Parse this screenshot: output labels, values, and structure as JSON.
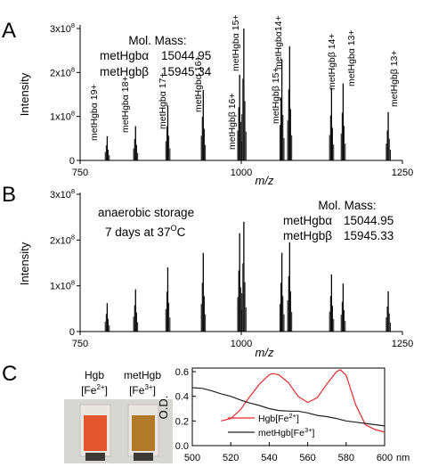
{
  "panels": {
    "A": {
      "letter": "A"
    },
    "B": {
      "letter": "B"
    },
    "C": {
      "letter": "C"
    }
  },
  "chart_data": [
    {
      "id": "A",
      "type": "line",
      "title": "",
      "xlabel": "m/z",
      "ylabel": "Intensity",
      "xlim": [
        750,
        1250
      ],
      "ylim": [
        0,
        3
      ],
      "y_unit_exponent": 8,
      "xticks": [
        "750",
        "1000",
        "1250"
      ],
      "yticks": [
        "0",
        "1x10",
        "2x10",
        "3x10"
      ],
      "ytick_exponent": "8",
      "mol_mass": {
        "heading": "Mol. Mass:",
        "rows": [
          {
            "name": "metHgbα",
            "value": "15044.95"
          },
          {
            "name": "metHgbβ",
            "value": "15945.34"
          }
        ]
      },
      "ion_labels": [
        "metHgbα 19+",
        "metHgbα 18+",
        "metHgbα 17+",
        "metHgbα 16+",
        "metHgbβ 16+",
        "metHgbα 15+",
        "metHgbβ 15+",
        "metHgbα14+",
        "metHgbβ 14+",
        "metHgbα 13+",
        "metHgbβ 13+"
      ],
      "peaks": [
        {
          "x": 792.0,
          "y": 0.55
        },
        {
          "x": 836.0,
          "y": 0.78
        },
        {
          "x": 886.0,
          "y": 1.25
        },
        {
          "x": 941.0,
          "y": 1.6
        },
        {
          "x": 997.5,
          "y": 1.95
        },
        {
          "x": 1004.0,
          "y": 3.0
        },
        {
          "x": 1063.0,
          "y": 2.3
        },
        {
          "x": 1075.0,
          "y": 2.6
        },
        {
          "x": 1140.0,
          "y": 1.65
        },
        {
          "x": 1158.0,
          "y": 1.75
        },
        {
          "x": 1228.0,
          "y": 1.1
        }
      ]
    },
    {
      "id": "B",
      "type": "line",
      "title": "",
      "xlabel": "m/z",
      "ylabel": "Intensity",
      "xlim": [
        750,
        1250
      ],
      "ylim": [
        0,
        3
      ],
      "y_unit_exponent": 8,
      "xticks": [
        "750",
        "1000",
        "1250"
      ],
      "yticks": [
        "0",
        "1x10",
        "2x10",
        "3x10"
      ],
      "ytick_exponent": "8",
      "annotation": [
        "anaerobic storage",
        "7 days at 37",
        "O",
        "C"
      ],
      "mol_mass": {
        "heading": "Mol. Mass:",
        "rows": [
          {
            "name": "metHgbα",
            "value": "15044.95"
          },
          {
            "name": "metHgbβ",
            "value": "15945.33"
          }
        ]
      },
      "peaks": [
        {
          "x": 792.0,
          "y": 0.62
        },
        {
          "x": 836.0,
          "y": 0.92
        },
        {
          "x": 886.0,
          "y": 1.4
        },
        {
          "x": 941.0,
          "y": 1.72
        },
        {
          "x": 997.5,
          "y": 2.15
        },
        {
          "x": 1004.0,
          "y": 2.4
        },
        {
          "x": 1063.0,
          "y": 1.72
        },
        {
          "x": 1075.0,
          "y": 1.95
        },
        {
          "x": 1140.0,
          "y": 1.25
        },
        {
          "x": 1158.0,
          "y": 1.05
        },
        {
          "x": 1228.0,
          "y": 0.88
        }
      ]
    },
    {
      "id": "C",
      "type": "line",
      "title": "",
      "xlabel": "nm",
      "ylabel": "O.D.",
      "xlim": [
        500,
        600
      ],
      "ylim": [
        0,
        0.6
      ],
      "xticks": [
        "500",
        "520",
        "540",
        "560",
        "580",
        "600"
      ],
      "yticks": [
        "0.0",
        "0.2",
        "0.4",
        "0.6"
      ],
      "legend_position": "bottom-right",
      "series": [
        {
          "name": "Hgb[Fe2+]",
          "legend_base": "Hgb[Fe",
          "legend_sup": "2+",
          "legend_end": "]",
          "color": "#e8282b",
          "x": [
            515,
            520,
            525,
            530,
            535,
            540,
            542,
            545,
            550,
            555,
            560,
            565,
            570,
            575,
            577,
            580,
            585,
            590,
            595,
            600
          ],
          "y": [
            0.2,
            0.22,
            0.29,
            0.4,
            0.5,
            0.575,
            0.585,
            0.575,
            0.51,
            0.4,
            0.35,
            0.39,
            0.5,
            0.6,
            0.615,
            0.57,
            0.33,
            0.17,
            0.13,
            0.11
          ]
        },
        {
          "name": "metHgb[Fe3+]",
          "legend_base": "metHgb[Fe",
          "legend_sup": "3+",
          "legend_end": "]",
          "color": "#222222",
          "x": [
            500,
            505,
            510,
            515,
            520,
            525,
            530,
            535,
            540,
            545,
            550,
            555,
            560,
            565,
            570,
            575,
            580,
            585,
            590,
            595,
            600
          ],
          "y": [
            0.47,
            0.465,
            0.445,
            0.42,
            0.4,
            0.37,
            0.345,
            0.325,
            0.3,
            0.285,
            0.28,
            0.28,
            0.265,
            0.245,
            0.235,
            0.22,
            0.2,
            0.19,
            0.18,
            0.17,
            0.16
          ]
        }
      ]
    }
  ],
  "cuvettes": {
    "hgb": {
      "line1": "Hgb",
      "line2_base": "[Fe",
      "line2_sup": "2+",
      "line2_end": "]",
      "color": "#e4572e"
    },
    "methgb": {
      "line1": "metHgb",
      "line2_base": "[Fe",
      "line2_sup": "3+",
      "line2_end": "]",
      "color": "#b07a2a"
    }
  }
}
